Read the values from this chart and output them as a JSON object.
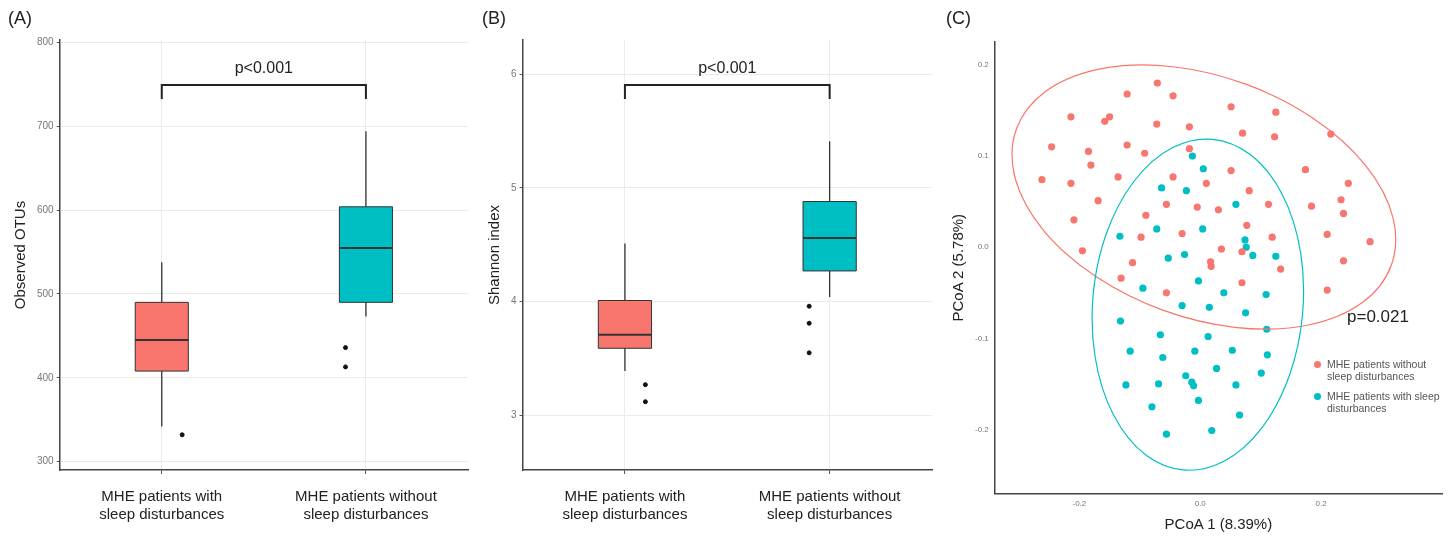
{
  "chart_data": [
    {
      "type": "box",
      "title": "(A)",
      "ylabel": "Observed OTUs",
      "categories": [
        "MHE patients with sleep disturbances",
        "MHE patients without sleep disturbances"
      ],
      "colors": [
        "#f8766d",
        "#00bfc4"
      ],
      "boxes": [
        {
          "low": 342,
          "q1": 408,
          "median": 445,
          "q3": 490,
          "high": 538,
          "outliers": [
            332
          ]
        },
        {
          "low": 473,
          "q1": 490,
          "median": 555,
          "q3": 604,
          "high": 694,
          "outliers": [
            436,
            413
          ]
        }
      ],
      "ylim": [
        290,
        803
      ],
      "yticks": [
        300,
        400,
        500,
        600,
        700,
        800
      ],
      "grid": true,
      "annotations": [
        "p<0.001"
      ]
    },
    {
      "type": "box",
      "title": "(B)",
      "ylabel": "Shannon index",
      "categories": [
        "MHE patients with sleep disturbances",
        "MHE patients without sleep disturbances"
      ],
      "colors": [
        "#f8766d",
        "#00bfc4"
      ],
      "boxes": [
        {
          "low": 3.39,
          "q1": 3.59,
          "median": 3.71,
          "q3": 4.01,
          "high": 4.51,
          "outliers": [
            3.27,
            3.12
          ]
        },
        {
          "low": 4.04,
          "q1": 4.27,
          "median": 4.56,
          "q3": 4.88,
          "high": 5.41,
          "outliers": [
            3.96,
            3.81,
            3.55
          ]
        }
      ],
      "ylim": [
        2.52,
        6.3
      ],
      "yticks": [
        3,
        4,
        5,
        6
      ],
      "grid": true,
      "annotations": [
        "p<0.001"
      ]
    },
    {
      "type": "scatter",
      "title": "(C)",
      "xlabel": "PCoA 1 (8.39%)",
      "ylabel": "PCoA 2 (5.78%)",
      "xlim": [
        -0.34,
        0.4
      ],
      "xticks": [
        -0.2,
        {
          "value": 0,
          "label": "0.0"
        },
        0.2
      ],
      "ylim": [
        -0.27,
        0.225
      ],
      "yticks": [
        -0.2,
        -0.1,
        {
          "value": 0,
          "label": "0.0"
        },
        0.1,
        0.2
      ],
      "grid": false,
      "legend": "right",
      "marker": "circle",
      "annotations": [
        "p=0.021"
      ],
      "series": [
        {
          "name": "MHE patients without sleep disturbances",
          "color": "#f8766d",
          "x": [
            -0.071,
            -0.045,
            -0.121,
            0.051,
            0.125,
            -0.214,
            -0.15,
            -0.158,
            -0.072,
            -0.018,
            0.07,
            0.216,
            0.123,
            -0.246,
            -0.121,
            -0.185,
            -0.092,
            -0.018,
            -0.181,
            0.051,
            0.174,
            -0.262,
            -0.214,
            -0.136,
            -0.045,
            0.01,
            0.245,
            0.081,
            -0.169,
            0.233,
            -0.056,
            -0.005,
            0.03,
            0.113,
            0.184,
            0.237,
            -0.209,
            -0.09,
            0.077,
            -0.03,
            -0.098,
            0.119,
            0.21,
            0.281,
            -0.195,
            0.035,
            0.069,
            -0.112,
            0.017,
            0.018,
            0.133,
            0.237,
            -0.131,
            0.069,
            -0.056,
            0.21
          ],
          "values": [
            0.18,
            0.166,
            0.168,
            0.154,
            0.148,
            0.143,
            0.143,
            0.138,
            0.135,
            0.132,
            0.125,
            0.124,
            0.121,
            0.11,
            0.112,
            0.105,
            0.103,
            0.108,
            0.09,
            0.084,
            0.085,
            0.074,
            0.07,
            0.077,
            0.077,
            0.07,
            0.07,
            0.062,
            0.051,
            0.052,
            0.047,
            0.044,
            0.041,
            0.047,
            0.045,
            0.037,
            0.03,
            0.035,
            0.024,
            0.015,
            0.011,
            0.011,
            0.014,
            0.006,
            -0.004,
            -0.002,
            -0.005,
            -0.017,
            -0.016,
            -0.021,
            -0.024,
            -0.015,
            -0.034,
            -0.039,
            -0.05,
            -0.047
          ]
        },
        {
          "name": "MHE patients with sleep disturbances",
          "color": "#00bfc4",
          "x": [
            -0.013,
            0.005,
            -0.064,
            -0.023,
            0.059,
            -0.072,
            0.004,
            -0.133,
            0.074,
            0.076,
            -0.026,
            0.087,
            -0.053,
            0.125,
            -0.003,
            -0.095,
            0.039,
            0.109,
            -0.03,
            0.015,
            0.075,
            -0.132,
            -0.066,
            0.013,
            0.11,
            -0.116,
            -0.009,
            0.053,
            -0.062,
            0.111,
            0.027,
            0.101,
            -0.024,
            -0.123,
            -0.069,
            -0.014,
            -0.011,
            0.059,
            -0.003,
            -0.08,
            0.065,
            -0.056,
            0.019
          ],
          "values": [
            0.1,
            0.086,
            0.065,
            0.062,
            0.047,
            0.02,
            0.02,
            0.012,
            0.008,
            0,
            -0.008,
            -0.009,
            -0.012,
            -0.01,
            -0.037,
            -0.045,
            -0.05,
            -0.052,
            -0.064,
            -0.066,
            -0.072,
            -0.081,
            -0.096,
            -0.098,
            -0.09,
            -0.114,
            -0.114,
            -0.113,
            -0.121,
            -0.118,
            -0.133,
            -0.138,
            -0.141,
            -0.151,
            -0.15,
            -0.148,
            -0.152,
            -0.151,
            -0.168,
            -0.175,
            -0.184,
            -0.205,
            -0.201
          ]
        }
      ]
    }
  ]
}
